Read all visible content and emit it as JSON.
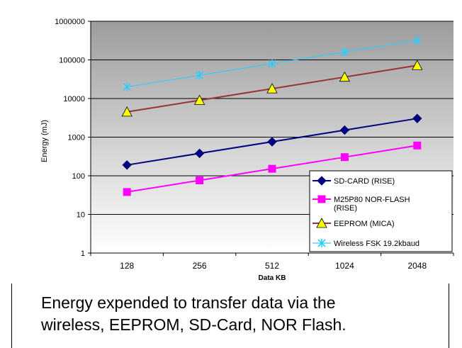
{
  "chart_data": {
    "type": "line",
    "ylabel": "Energy (mJ)",
    "xlabel": "Data KB",
    "yscale": "log",
    "ylim": [
      1,
      1000000
    ],
    "y_ticks": [
      "1",
      "10",
      "100",
      "1000",
      "10000",
      "100000",
      "1000000"
    ],
    "categories": [
      "128",
      "256",
      "512",
      "1024",
      "2048"
    ],
    "grid": true,
    "legend_position": "bottom-right",
    "series": [
      {
        "name": "SD-CARD (RISE)",
        "values": [
          190,
          380,
          760,
          1520,
          3040
        ],
        "color": "#00007f",
        "marker": "diamond"
      },
      {
        "name": "M25P80 NOR-FLASH (RISE)",
        "values": [
          38,
          76,
          152,
          304,
          608
        ],
        "color": "#ff00ff",
        "marker": "square"
      },
      {
        "name": "EEPROM (MICA)",
        "values": [
          4500,
          9000,
          18000,
          36000,
          72000
        ],
        "color": "#993333",
        "marker": "triangle"
      },
      {
        "name": "Wireless FSK 19.2kbaud",
        "values": [
          20000,
          40000,
          80000,
          160000,
          320000
        ],
        "color": "#33ccff",
        "marker": "x"
      }
    ]
  },
  "caption": {
    "line1": "Energy expended to transfer data via the",
    "line2": "wireless, EEPROM, SD-Card, NOR Flash."
  }
}
